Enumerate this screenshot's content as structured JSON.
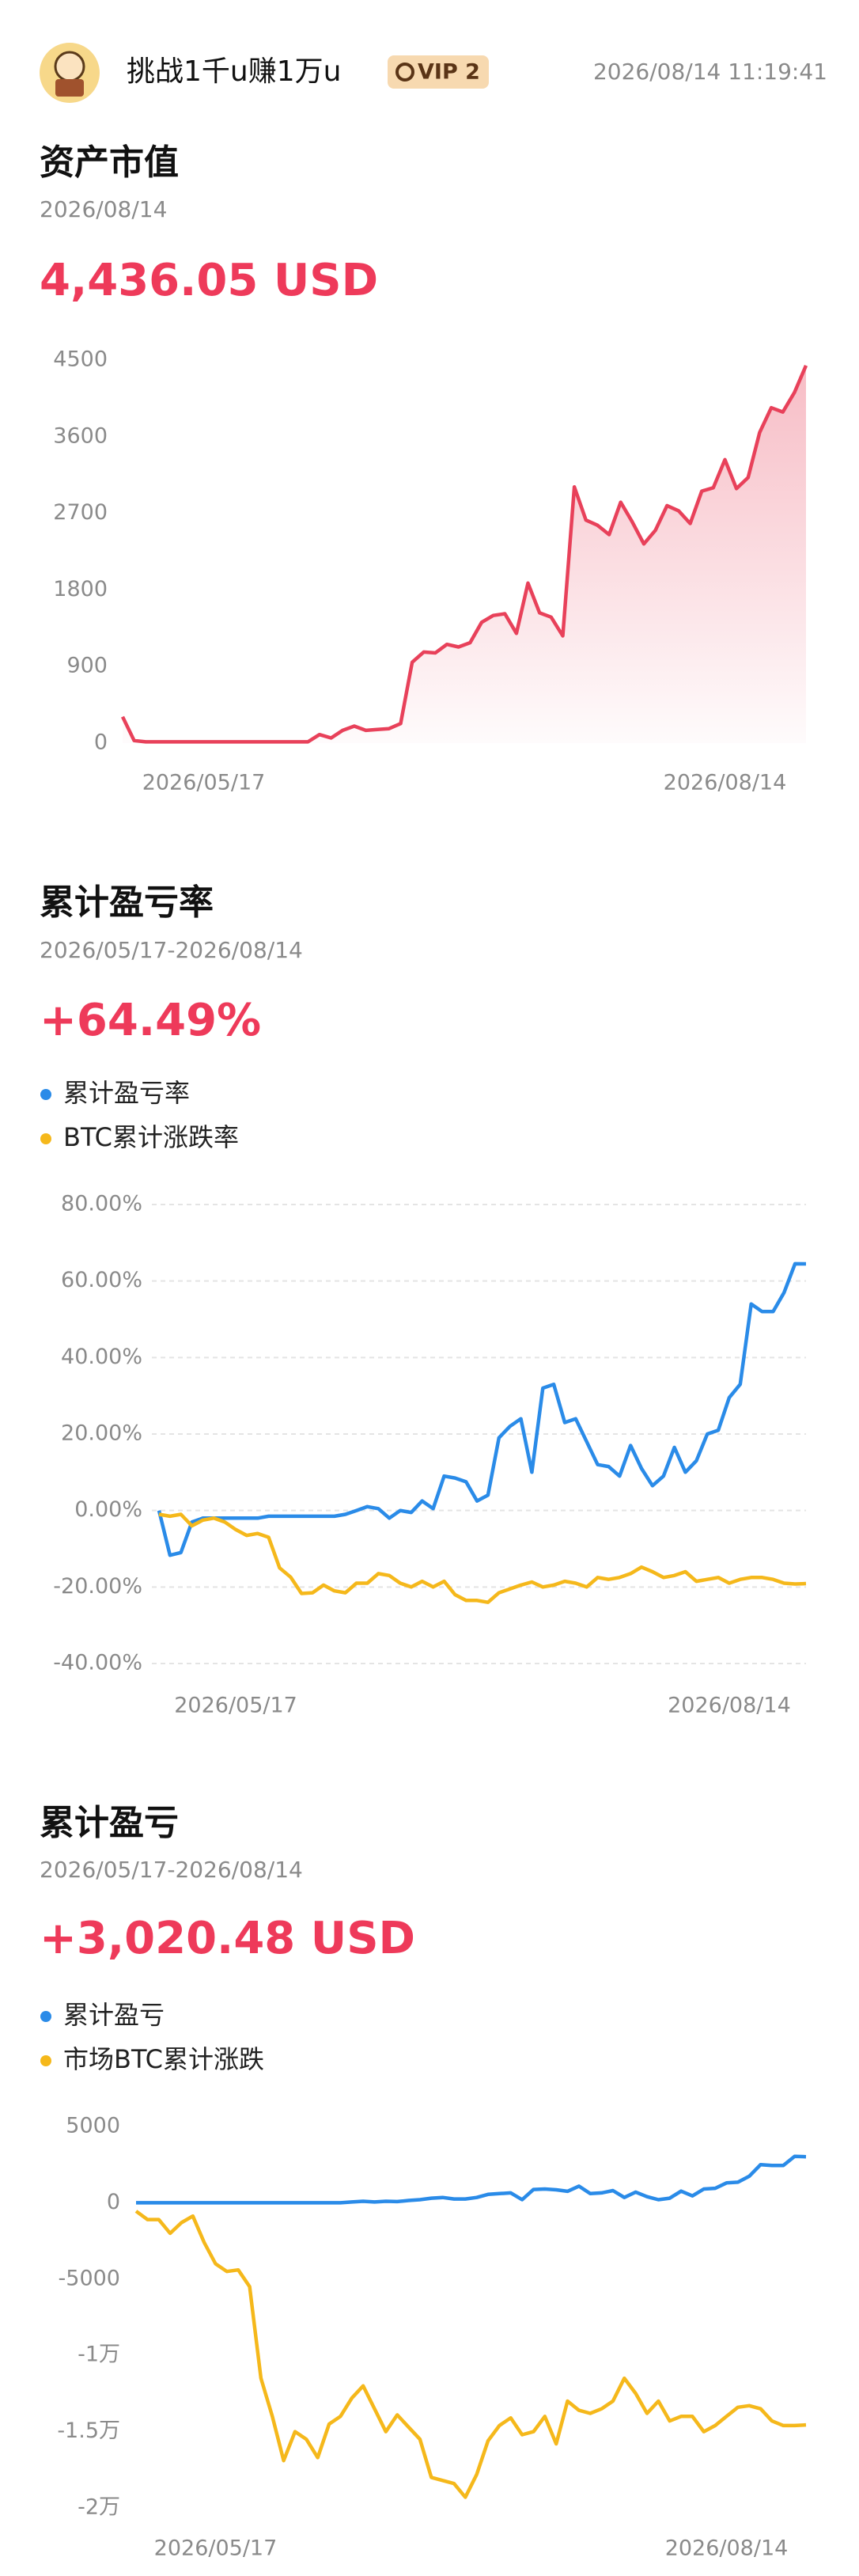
{
  "header": {
    "username": "挑战1千u赚1万u",
    "vip": "VIP 2",
    "timestamp": "2026/08/14 11:19:41"
  },
  "chart_data": [
    {
      "type": "area",
      "title": "资产市值",
      "subtitle": "2026/08/14",
      "headline": "4,436.05 USD",
      "color": "#e8415a",
      "grid": false,
      "categories": [
        null,
        null,
        null,
        null,
        null,
        null,
        null,
        "2026/05/17",
        null,
        null,
        null,
        null,
        null,
        null,
        null,
        null,
        null,
        null,
        null,
        null,
        null,
        null,
        null,
        null,
        null,
        null,
        null,
        null,
        null,
        null,
        null,
        null,
        null,
        null,
        null,
        null,
        null,
        null,
        null,
        null,
        null,
        null,
        null,
        null,
        null,
        null,
        null,
        null,
        null,
        null,
        null,
        null,
        "2026/08/14",
        null,
        null,
        null,
        null,
        null,
        null,
        null
      ],
      "values": [
        310,
        30,
        15,
        15,
        15,
        15,
        15,
        15,
        15,
        15,
        15,
        15,
        15,
        15,
        15,
        15,
        15,
        100,
        60,
        150,
        200,
        150,
        160,
        170,
        230,
        950,
        1070,
        1060,
        1160,
        1130,
        1180,
        1420,
        1500,
        1520,
        1290,
        1880,
        1530,
        1480,
        1260,
        3010,
        2620,
        2560,
        2450,
        2830,
        2600,
        2340,
        2500,
        2790,
        2730,
        2580,
        2960,
        3000,
        3330,
        2990,
        3120,
        3650,
        3940,
        3890,
        4120,
        4436.05
      ],
      "ylim": [
        0,
        4500
      ],
      "yticks": [
        0,
        900,
        1800,
        2700,
        3600,
        4500
      ]
    },
    {
      "type": "line",
      "title": "累计盈亏率",
      "subtitle": "2026/05/17-2026/08/14",
      "headline": "+64.49%",
      "grid": true,
      "categories": [
        null,
        null,
        null,
        null,
        null,
        null,
        null,
        "2026/05/17",
        null,
        null,
        null,
        null,
        null,
        null,
        null,
        null,
        null,
        null,
        null,
        null,
        null,
        null,
        null,
        null,
        null,
        null,
        null,
        null,
        null,
        null,
        null,
        null,
        null,
        null,
        null,
        null,
        null,
        null,
        null,
        null,
        null,
        null,
        null,
        null,
        null,
        null,
        null,
        null,
        null,
        null,
        null,
        null,
        "2026/08/14",
        null,
        null,
        null,
        null,
        null,
        null,
        null
      ],
      "series": [
        {
          "name": "累计盈亏率",
          "color": "#2a8be8",
          "values": [
            0,
            -11.7,
            -11,
            -3,
            -2,
            -2,
            -2,
            -2,
            -2,
            -2,
            -1.5,
            -1.5,
            -1.5,
            -1.5,
            -1.5,
            -1.5,
            -1.5,
            -1,
            0,
            1,
            0.5,
            -2,
            0,
            -0.5,
            2.5,
            0.5,
            9,
            8.5,
            7.5,
            2.5,
            4,
            19,
            22,
            24,
            10,
            32,
            33,
            23,
            24,
            18,
            12,
            11.5,
            9,
            17,
            11,
            6.5,
            9,
            16.5,
            10,
            13,
            20,
            21,
            29.5,
            33,
            54,
            52,
            52,
            57,
            64.5,
            64.49
          ]
        },
        {
          "name": "BTC累计涨跌率",
          "color": "#f5b81b",
          "values": [
            -1,
            -1.5,
            -1,
            -4,
            -2.5,
            -2,
            -3,
            -5,
            -6.5,
            -6,
            -7,
            -15,
            -17.4,
            -21.7,
            -21.5,
            -19.5,
            -21,
            -21.5,
            -19,
            -19,
            -16.5,
            -17,
            -19,
            -20,
            -18.5,
            -20,
            -18.5,
            -22,
            -23.5,
            -23.5,
            -24,
            -21.5,
            -20.5,
            -19.5,
            -18.7,
            -20,
            -19.5,
            -18.5,
            -19,
            -20,
            -17.5,
            -18,
            -17.5,
            -16.5,
            -14.8,
            -16,
            -17.5,
            -17,
            -16,
            -18.5,
            -18,
            -17.5,
            -19,
            -18,
            -17.5,
            -17.5,
            -18,
            -19,
            -19.2,
            -19.1
          ]
        }
      ],
      "ylim": [
        -40,
        80
      ],
      "yticks": [
        {
          "value": -40,
          "label": "-40.00%"
        },
        {
          "value": -20,
          "label": "-20.00%"
        },
        {
          "value": 0,
          "label": "0.00%"
        },
        {
          "value": 20,
          "label": "20.00%"
        },
        {
          "value": 40,
          "label": "40.00%"
        },
        {
          "value": 60,
          "label": "60.00%"
        },
        {
          "value": 80,
          "label": "80.00%"
        }
      ]
    },
    {
      "type": "line",
      "title": "累计盈亏",
      "subtitle": "2026/05/17-2026/08/14",
      "headline": "+3,020.48 USD",
      "grid": false,
      "categories": [
        null,
        null,
        null,
        null,
        null,
        null,
        null,
        "2026/05/17",
        null,
        null,
        null,
        null,
        null,
        null,
        null,
        null,
        null,
        null,
        null,
        null,
        null,
        null,
        null,
        null,
        null,
        null,
        null,
        null,
        null,
        null,
        null,
        null,
        null,
        null,
        null,
        null,
        null,
        null,
        null,
        null,
        null,
        null,
        null,
        null,
        null,
        null,
        null,
        null,
        null,
        null,
        null,
        null,
        "2026/08/14",
        null,
        null,
        null,
        null,
        null,
        null,
        null
      ],
      "series": [
        {
          "name": "累计盈亏",
          "color": "#2a8be8",
          "values": [
            0,
            0,
            0,
            0,
            0,
            0,
            0,
            0,
            0,
            0,
            0,
            0,
            0,
            0,
            0,
            0,
            0,
            0,
            0,
            50,
            100,
            50,
            100,
            80,
            150,
            200,
            300,
            350,
            250,
            250,
            350,
            550,
            600,
            650,
            200,
            870,
            900,
            850,
            750,
            1090,
            600,
            650,
            800,
            350,
            700,
            400,
            200,
            300,
            760,
            450,
            900,
            950,
            1300,
            1350,
            1740,
            2500,
            2450,
            2450,
            3040,
            3020.48
          ]
        },
        {
          "name": "市场BTC累计涨跌",
          "color": "#f5b81b",
          "values": [
            -550,
            -1100,
            -1100,
            -2000,
            -1300,
            -870,
            -2600,
            -4000,
            -4500,
            -4400,
            -5500,
            -11500,
            -14000,
            -16900,
            -15000,
            -15500,
            -16700,
            -14500,
            -14000,
            -12800,
            -12000,
            -13500,
            -15000,
            -13900,
            -14700,
            -15500,
            -18000,
            -18200,
            -18400,
            -19300,
            -17800,
            -15600,
            -14600,
            -14100,
            -15200,
            -15000,
            -14000,
            -15800,
            -13000,
            -13600,
            -13800,
            -13500,
            -13000,
            -11500,
            -12500,
            -13800,
            -13000,
            -14300,
            -14000,
            -14000,
            -15000,
            -14600,
            -14000,
            -13400,
            -13300,
            -13500,
            -14300,
            -14600,
            -14600,
            -14560
          ]
        }
      ],
      "ylim": [
        -20000,
        5000
      ],
      "yticks": [
        {
          "value": -20000,
          "label": "-2万"
        },
        {
          "value": -15000,
          "label": "-1.5万"
        },
        {
          "value": -10000,
          "label": "-1万"
        },
        -5000,
        0,
        5000
      ]
    }
  ]
}
